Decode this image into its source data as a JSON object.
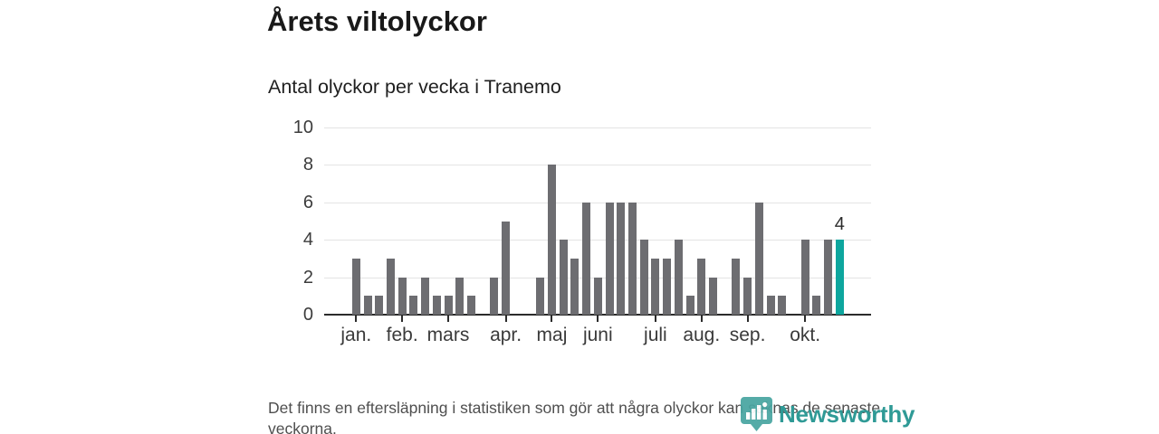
{
  "header": {
    "title": "Årets viltolyckor",
    "subtitle": "Antal olyckor per vecka i Tranemo"
  },
  "footer": {
    "footnote": "Det finns en eftersläpning i statistiken som gör att några olyckor kan saknas de senaste veckorna.",
    "logo_text": "Newsworthy",
    "logo_icon": "newsworthy-pin-barchart-icon"
  },
  "colors": {
    "bar": "#6d6d71",
    "highlight": "#0da69e",
    "axis": "#2b2b2b",
    "gridline": "#e4e4e4",
    "title_text": "#191919",
    "muted_text": "#4f4f4f",
    "brand": "#2f9a96"
  },
  "chart_data": {
    "type": "bar",
    "title": "Årets viltolyckor",
    "subtitle": "Antal olyckor per vecka i Tranemo",
    "x_unit": "vecka (week number)",
    "x": [
      1,
      2,
      3,
      4,
      5,
      6,
      7,
      8,
      9,
      10,
      11,
      12,
      13,
      14,
      15,
      16,
      17,
      18,
      19,
      20,
      21,
      22,
      23,
      24,
      25,
      26,
      27,
      28,
      29,
      30,
      31,
      32,
      33,
      34,
      35,
      36,
      37,
      38,
      39,
      40,
      41,
      42,
      43
    ],
    "values": [
      3,
      1,
      1,
      3,
      2,
      1,
      2,
      1,
      1,
      2,
      1,
      0,
      2,
      5,
      0,
      0,
      2,
      8,
      4,
      3,
      6,
      2,
      6,
      6,
      6,
      4,
      3,
      3,
      4,
      1,
      3,
      2,
      0,
      3,
      2,
      6,
      1,
      1,
      0,
      4,
      1,
      4,
      4
    ],
    "highlight_index": 42,
    "highlight_label": "4",
    "ylim": [
      0,
      10
    ],
    "yticks": [
      0,
      2,
      4,
      6,
      8,
      10
    ],
    "grid": "horizontal",
    "legend": "none",
    "month_ticks": [
      {
        "label": "jan.",
        "slot": 1
      },
      {
        "label": "feb.",
        "slot": 5
      },
      {
        "label": "mars",
        "slot": 9
      },
      {
        "label": "apr.",
        "slot": 14
      },
      {
        "label": "maj",
        "slot": 18
      },
      {
        "label": "juni",
        "slot": 22
      },
      {
        "label": "juli",
        "slot": 27
      },
      {
        "label": "aug.",
        "slot": 31
      },
      {
        "label": "sep.",
        "slot": 35
      },
      {
        "label": "okt.",
        "slot": 40
      }
    ]
  }
}
